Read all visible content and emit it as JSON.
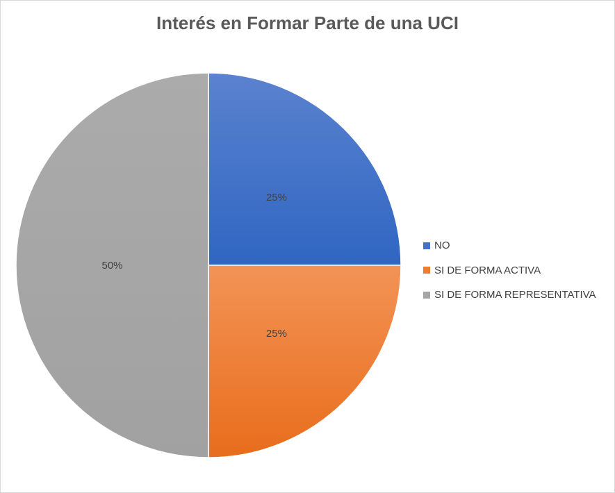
{
  "chart_data": {
    "type": "pie",
    "title": "Interés en Formar Parte de una UCI",
    "categories": [
      "NO",
      "SI DE FORMA ACTIVA",
      "SI DE FORMA REPRESENTATIVA"
    ],
    "values": [
      25,
      25,
      50
    ],
    "labels": [
      "25%",
      "25%",
      "50%"
    ],
    "colors": [
      "#4472c4",
      "#ed7d31",
      "#a5a5a5"
    ],
    "legend": "right"
  }
}
